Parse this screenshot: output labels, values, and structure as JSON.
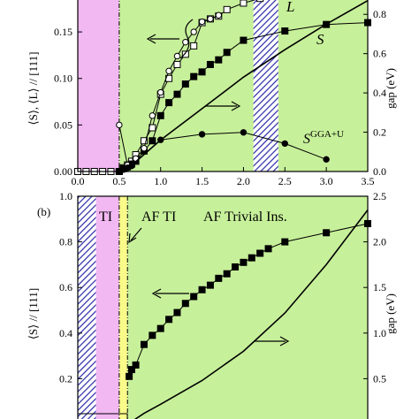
{
  "chart_data": [
    {
      "type": "line",
      "panel": "a",
      "ylabel_left": "⟨S⟩, ⟨L⟩ // [111]",
      "ylabel_right": "gap (eV)",
      "x_ticks": [
        "0.0",
        "0.5",
        "1.0",
        "1.5",
        "2.0",
        "2.5",
        "3.0",
        "3.5"
      ],
      "y_left_ticks": [
        "0.00",
        "0.05",
        "0.10",
        "0.15"
      ],
      "y_right_ticks": [
        "0.0",
        "0.2",
        "0.4",
        "0.6",
        "0.8"
      ],
      "xlim": [
        0,
        3.5
      ],
      "ylim_left": [
        0,
        0.19
      ],
      "ylim_right": [
        0,
        0.9
      ],
      "regions": [
        {
          "kind": "pink",
          "from": 0,
          "to": 0.5,
          "color": "#f2b8f2"
        },
        {
          "kind": "green",
          "from": 0.5,
          "to": 3.5,
          "color": "#c7f09a"
        },
        {
          "kind": "hatch",
          "from": 2.12,
          "to": 2.42,
          "color": "#2a2aa8"
        }
      ],
      "boundary_x": 0.5,
      "labels": {
        "L": "L",
        "S": "S",
        "S_GGA": "S",
        "S_GGA_sup": "GGA+U"
      },
      "series": [
        {
          "name": "L",
          "marker": "open-square",
          "axis": "left",
          "x": [
            0.0,
            0.1,
            0.2,
            0.3,
            0.4,
            0.5,
            0.55,
            0.6,
            0.65,
            0.7,
            0.8,
            0.9,
            1.0,
            1.1,
            1.2,
            1.3,
            1.4,
            1.5,
            1.6,
            1.7,
            1.8,
            2.0,
            2.2
          ],
          "values": [
            0.0,
            0.0,
            0.0,
            0.0,
            0.0,
            0.0,
            0.004,
            0.007,
            0.011,
            0.018,
            0.033,
            0.047,
            0.083,
            0.1,
            0.115,
            0.126,
            0.135,
            0.16,
            0.164,
            0.167,
            0.174,
            0.181,
            0.186
          ]
        },
        {
          "name": "S",
          "marker": "filled-square",
          "axis": "left",
          "x": [
            0.5,
            0.55,
            0.6,
            0.65,
            0.7,
            0.8,
            0.9,
            1.0,
            1.1,
            1.2,
            1.3,
            1.4,
            1.5,
            1.6,
            1.7,
            1.8,
            2.0,
            2.5,
            3.0,
            3.5
          ],
          "values": [
            0.0,
            0.003,
            0.005,
            0.008,
            0.011,
            0.022,
            0.033,
            0.06,
            0.074,
            0.083,
            0.094,
            0.102,
            0.107,
            0.115,
            0.12,
            0.128,
            0.141,
            0.151,
            0.158,
            0.16
          ]
        },
        {
          "name": "open circles",
          "marker": "open-circle",
          "axis": "left",
          "x": [
            0.5,
            0.6,
            0.7,
            0.8,
            0.9,
            1.0,
            1.1,
            1.2,
            1.3,
            1.4,
            1.5,
            1.6,
            1.7
          ],
          "values": [
            0.05,
            0.007,
            0.014,
            0.025,
            0.06,
            0.085,
            0.108,
            0.124,
            0.139,
            0.15,
            0.161,
            0.164,
            0.168
          ]
        },
        {
          "name": "S GGA+U",
          "marker": "filled-circle",
          "axis": "left",
          "x": [
            0.5,
            0.55,
            0.6,
            0.65,
            1.0,
            1.5,
            2.0,
            2.5,
            3.0
          ],
          "values": [
            0.0,
            0.002,
            0.004,
            0.006,
            0.034,
            0.04,
            0.042,
            0.03,
            0.013
          ]
        },
        {
          "name": "gap",
          "marker": "none",
          "axis": "right",
          "x": [
            0.5,
            0.6,
            0.7,
            1.0,
            1.5,
            2.0,
            2.5,
            3.0,
            3.5
          ],
          "values": [
            0.0,
            0.02,
            0.05,
            0.16,
            0.32,
            0.48,
            0.62,
            0.75,
            0.87
          ]
        }
      ]
    },
    {
      "type": "line",
      "panel": "b",
      "panel_label": "(b)",
      "ylabel_left": "⟨S⟩ // [111]",
      "ylabel_right": "gap (eV)",
      "y_left_ticks": [
        "0.2",
        "0.4",
        "0.6",
        "0.8",
        "1.0"
      ],
      "y_right_ticks": [
        "0.5",
        "1.0",
        "1.5",
        "2.0",
        "2.5"
      ],
      "xlim": [
        0,
        3.5
      ],
      "ylim_left": [
        0,
        1.0
      ],
      "ylim_right": [
        0,
        2.5
      ],
      "region_labels": [
        "TI",
        "AF TI",
        "AF Trivial Ins."
      ],
      "regions": [
        {
          "kind": "hatch",
          "from": 0.0,
          "to": 0.22,
          "color": "#2a2aa8"
        },
        {
          "kind": "pink",
          "from": 0.22,
          "to": 0.5,
          "color": "#f2b8f2"
        },
        {
          "kind": "yellow",
          "from": 0.5,
          "to": 0.6,
          "color": "#fafa8a"
        },
        {
          "kind": "green",
          "from": 0.6,
          "to": 3.5,
          "color": "#c7f09a"
        }
      ],
      "series": [
        {
          "name": "S",
          "marker": "filled-square",
          "axis": "left",
          "x": [
            0.62,
            0.65,
            0.7,
            0.8,
            0.9,
            1.0,
            1.1,
            1.2,
            1.3,
            1.4,
            1.5,
            1.6,
            1.7,
            1.8,
            1.9,
            2.0,
            2.1,
            2.2,
            2.3,
            2.5,
            3.0,
            3.5
          ],
          "values": [
            0.21,
            0.24,
            0.26,
            0.35,
            0.39,
            0.42,
            0.46,
            0.49,
            0.53,
            0.56,
            0.59,
            0.61,
            0.64,
            0.66,
            0.69,
            0.71,
            0.73,
            0.75,
            0.77,
            0.8,
            0.84,
            0.88
          ]
        },
        {
          "name": "gap",
          "marker": "none",
          "axis": "right",
          "x": [
            0.6,
            0.8,
            1.0,
            1.5,
            2.0,
            2.5,
            3.0,
            3.5
          ],
          "values": [
            0.0,
            0.12,
            0.22,
            0.48,
            0.8,
            1.22,
            1.75,
            2.35
          ]
        }
      ]
    }
  ]
}
